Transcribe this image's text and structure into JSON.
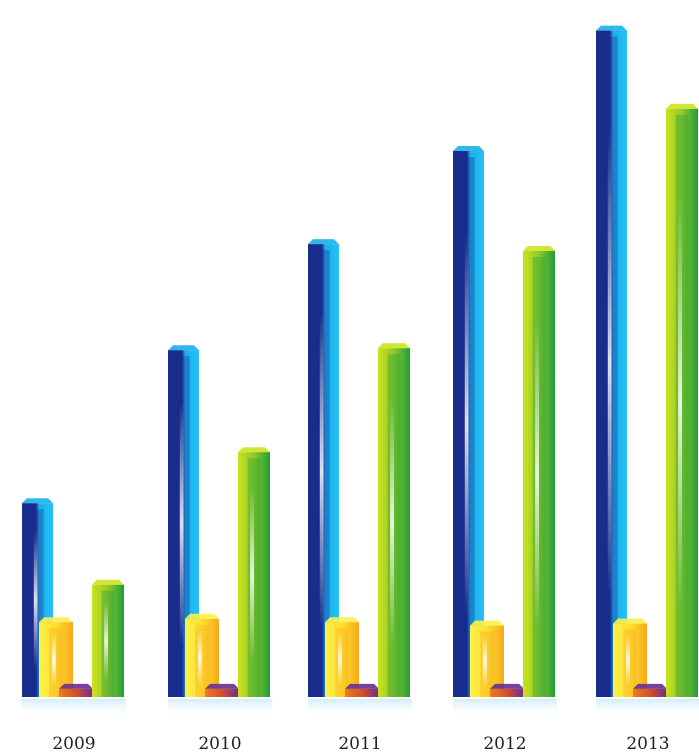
{
  "chart_data": {
    "type": "bar",
    "title": "",
    "xlabel": "",
    "ylabel": "",
    "categories": [
      "2009",
      "2010",
      "2011",
      "2012",
      "2013"
    ],
    "ylim": [
      0,
      100
    ],
    "grid": false,
    "legend": "none",
    "series": [
      {
        "values": [
          28.5,
          51,
          66.6,
          80.3,
          98
        ],
        "colors": [
          "#1a2c8c",
          "#1ab0ec"
        ]
      },
      {
        "values": [
          11,
          11.5,
          11,
          10.5,
          10.8
        ],
        "colors": [
          "#f7a81c",
          "#fff04a"
        ]
      },
      {
        "values": [
          1.2,
          1.2,
          1.2,
          1.2,
          1.2
        ],
        "colors": [
          "#f07d1e",
          "#6a2c94"
        ]
      },
      {
        "values": [
          16.5,
          36,
          51.3,
          65.6,
          86.5
        ],
        "colors": [
          "#1f9e3a",
          "#cde21e"
        ]
      }
    ]
  }
}
